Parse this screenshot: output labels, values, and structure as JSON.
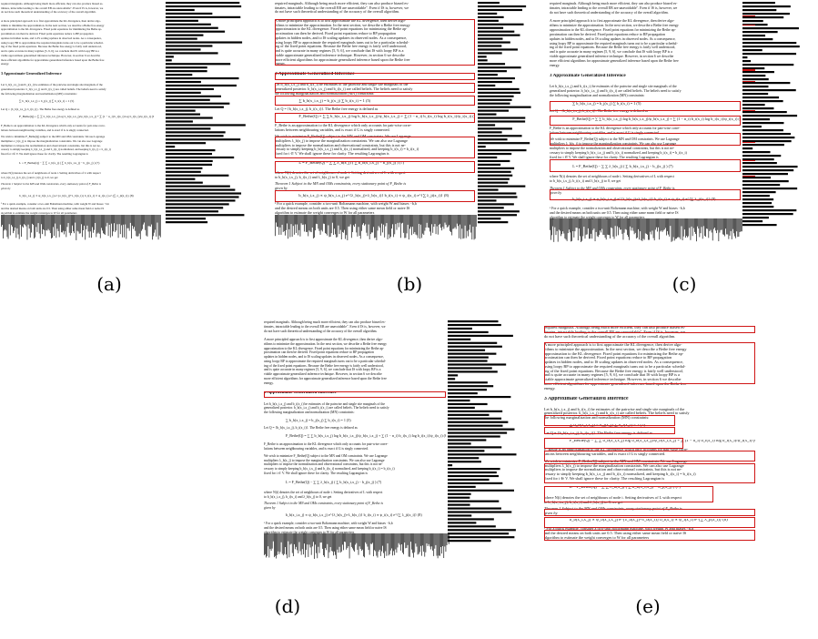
{
  "panels": [
    {
      "id": "a",
      "label": "(a)"
    },
    {
      "id": "b",
      "label": "(b)"
    },
    {
      "id": "c",
      "label": "(c)"
    },
    {
      "id": "d",
      "label": "(d)"
    },
    {
      "id": "e",
      "label": "(e)"
    }
  ],
  "paper": {
    "intro_line_1": "required marginals. Although being much more efficient, they can also produce biased es-",
    "intro_line_2": "timates, intractable leading to the overall EB are unavoidable\". Even if IS is, however, we",
    "intro_line_3": "do not have such theoretical understanding of the accuracy of the overall algorithm.",
    "para_1": "A more principled approach is to first approximate the KL divergence, then derive algo-",
    "para_2": "rithms to minimize the approximation. In the next section, we describe a Bethe free energy",
    "para_3": "approximation to the KL divergence. Fixed point equations for minimizing the Bethe ap-",
    "para_4": "proximation can then be derived. Fixed point equations reduce to BP propagation",
    "para_5": "updates in hidden nodes, and to IS scaling updates in observed nodes. As a consequence,",
    "para_6": "using loopy BP to approximate the required marginals turns out to be a particular schedul-",
    "para_7": "ing of the fixed point equations. Because the Bethe free energy is fairly well understood,",
    "para_8": "and is quite accurate in many regimes [5, 9, 6], we conclude that IS with loopy BP is a",
    "para_9": "viable approximate generalized inference technique. However, in section 6 we describe",
    "para_10": "more efficient algorithms for approximate generalized inference based upon the Bethe free",
    "para_11": "energy.",
    "section_heading": "3   Approximate Generalized Inference",
    "s3_line_1": "Let b_b(x_i,x_j) and b_i(x_i) be estimates of the pairwise and single site marginals of the",
    "s3_line_2": "generalized posterior. b_b(x_i,x_j) and b_i(x_i) are called beliefs. The beliefs need to satisfy",
    "s3_line_3": "the following marginalization and normalization (MN) constraints:",
    "eq1": "∑ b_b(x_i,x_j) = b_j(x_j)        ∑ b_i(x_i) = 1          (5)",
    "let_q": "Let Q = {b_b(x_i,x_j), b_i(x_i)}. The Bethe free energy is defined as",
    "eq2": "F_Bethe(Q) = ∑ ∑ b_b(x_i,x_j) log b_b(x_i,x_j)/ψ_b(x_i,x_j) + ∑ (1 − n_i) b_i(x_i) log b_i(x_i)/ψ_i(x_i)   (6)",
    "fb_line_1": "F_Bethe is an approximation to the KL divergence which only accounts for pair-wise corre-",
    "fb_line_2": "lations between neighbouring variables, and is exact if G is singly connected.",
    "wish_1": "We wish to minimize F_Bethe(Q) subject to the MN and OM constraints. We use Lagrange",
    "wish_2": "multipliers λ_b(x_j) to impose the marginalization constraints. We can also use Lagrange",
    "wish_3": "multipliers to impose the normalization and observational constraints, but this is not ne-",
    "wish_4": "cessary to simply keeping b_b(x_i,x_j) and b_i(x_i) normalized, and keeping b_i(x_i) = b_i(x_i)",
    "wish_5": "fixed for i ∈ V. We shall ignore these for clarity. The resulting Lagrangian is",
    "eq3": "L = F_Bethe(Q) − ∑ ∑ λ_b(x_j) ( ∑ b_b(x_i,x_j) − b_j(x_j) )          (7)",
    "where_1": "where N(i) denotes the set of neighbours of node i. Setting derivatives of L with respect",
    "where_2": "to b_b(x_i,x_j), b_i(x_i) and λ_b(x_j) to 0, we get",
    "theorem": "Theorem 1  Subject to the MN and OMs constraints, every stationary point of F_Bethe is",
    "theorem_2": "given by",
    "eq4": "b_b(x_i,x_j) ∝ ψ_b(x_i,x_j) e^{λ_b(x_j)+λ_b(x_i)}        b_i(x_i) ∝ ψ_i(x_i) e^{∑ λ_ji(x_i)}   (8)",
    "foot_1": "¹ For a quick example, consider a two-unit Boltzmann machine, with weight W and biases −b,b",
    "foot_2": "and the desired means on both units are 0.5. Then using either same mean field or naive IS",
    "foot_3": "algorithm to estimate the weight converges to W for all parameters"
  }
}
